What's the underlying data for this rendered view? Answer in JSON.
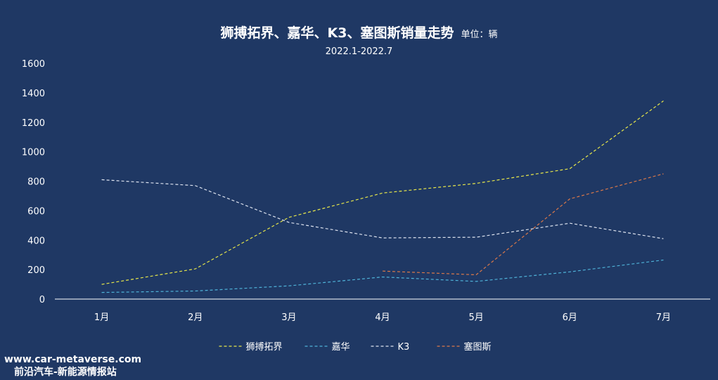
{
  "title": "狮搏拓界、嘉华、K3、塞图斯销量走势",
  "unit_label": "单位：辆",
  "subtitle": "2022.1-2022.7",
  "watermark": {
    "line1": "www.car-metaverse.com",
    "line2": "前沿汽车-新能源情报站"
  },
  "chart_data": {
    "type": "line",
    "categories": [
      "1月",
      "2月",
      "3月",
      "4月",
      "5月",
      "6月",
      "7月"
    ],
    "ylim": [
      0,
      1600
    ],
    "yticks": [
      "0",
      "200",
      "400",
      "600",
      "800",
      "1000",
      "1200",
      "1400",
      "1600"
    ],
    "grid": false,
    "legend_position": "bottom",
    "line_style": "dashed",
    "series": [
      {
        "name": "狮搏拓界",
        "color": "#e8e84a",
        "values": [
          100,
          205,
          555,
          720,
          785,
          885,
          1345
        ]
      },
      {
        "name": "嘉华",
        "color": "#4fb3d9",
        "values": [
          45,
          55,
          90,
          150,
          120,
          185,
          265
        ]
      },
      {
        "name": "K3",
        "color": "#dde3ef",
        "values": [
          810,
          770,
          520,
          415,
          420,
          515,
          410
        ]
      },
      {
        "name": "塞图斯",
        "color": "#d9784a",
        "values": [
          null,
          null,
          null,
          190,
          165,
          680,
          850
        ]
      }
    ]
  }
}
